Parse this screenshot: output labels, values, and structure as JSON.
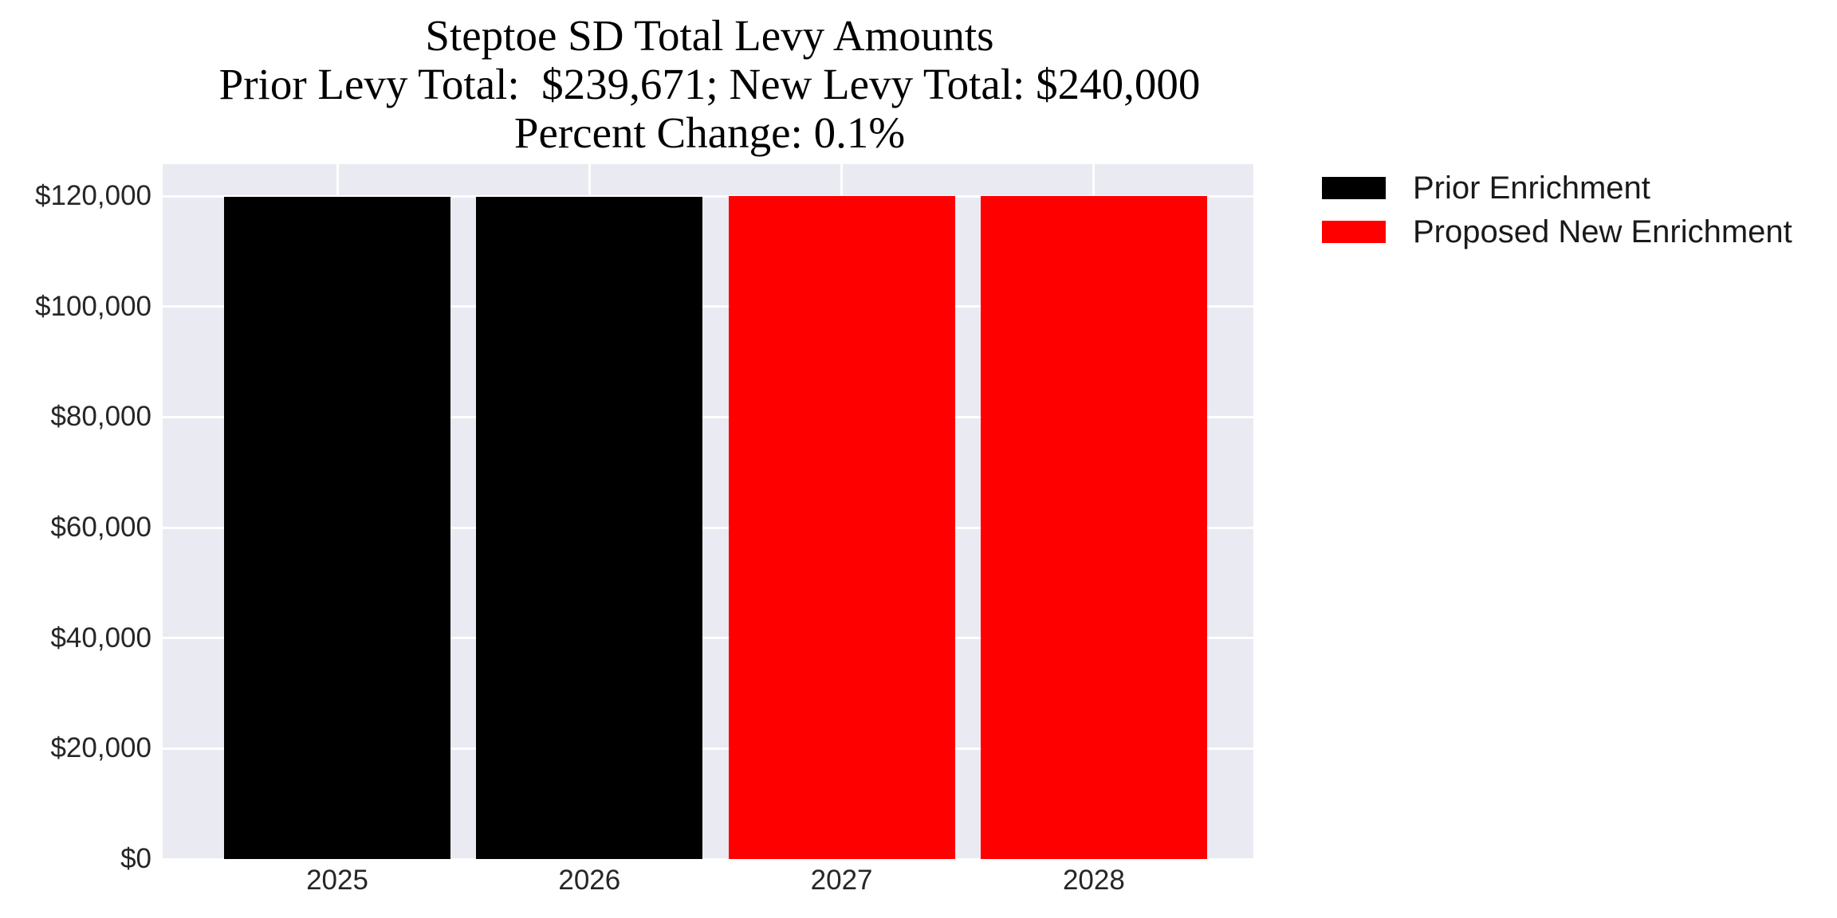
{
  "title": {
    "line1": "Steptoe SD Total Levy Amounts",
    "line2": "Prior Levy Total:  $239,671; New Levy Total: $240,000",
    "line3": "Percent Change: 0.1%"
  },
  "summary_values": {
    "prior_levy_total": "$239,671",
    "new_levy_total": "$240,000",
    "percent_change": "0.1%"
  },
  "legend": {
    "entries": [
      {
        "label": "Prior Enrichment",
        "color": "#000000"
      },
      {
        "label": "Proposed New Enrichment",
        "color": "#ff0000"
      }
    ]
  },
  "chart_data": {
    "type": "bar",
    "title": "Steptoe SD Total Levy Amounts",
    "subtitle": "Prior Levy Total:  $239,671; New Levy Total: $240,000",
    "subtitle2": "Percent Change: 0.1%",
    "categories": [
      "2025",
      "2026",
      "2027",
      "2028"
    ],
    "series": [
      {
        "name": "Prior Enrichment",
        "color": "#000000",
        "values": [
          119835.5,
          119835.5,
          null,
          null
        ]
      },
      {
        "name": "Proposed New Enrichment",
        "color": "#ff0000",
        "values": [
          null,
          null,
          120000,
          120000
        ]
      }
    ],
    "xlabel": "",
    "ylabel": "",
    "ylim": [
      0,
      125800
    ],
    "yticks": [
      0,
      20000,
      40000,
      60000,
      80000,
      100000,
      120000
    ],
    "ytick_labels": [
      "$0",
      "$20,000",
      "$40,000",
      "$60,000",
      "$80,000",
      "$100,000",
      "$120,000"
    ],
    "grid": true,
    "grid_color": "#ffffff",
    "plot_background": "#eaeaf2",
    "legend_position": "outside-upper-right"
  }
}
